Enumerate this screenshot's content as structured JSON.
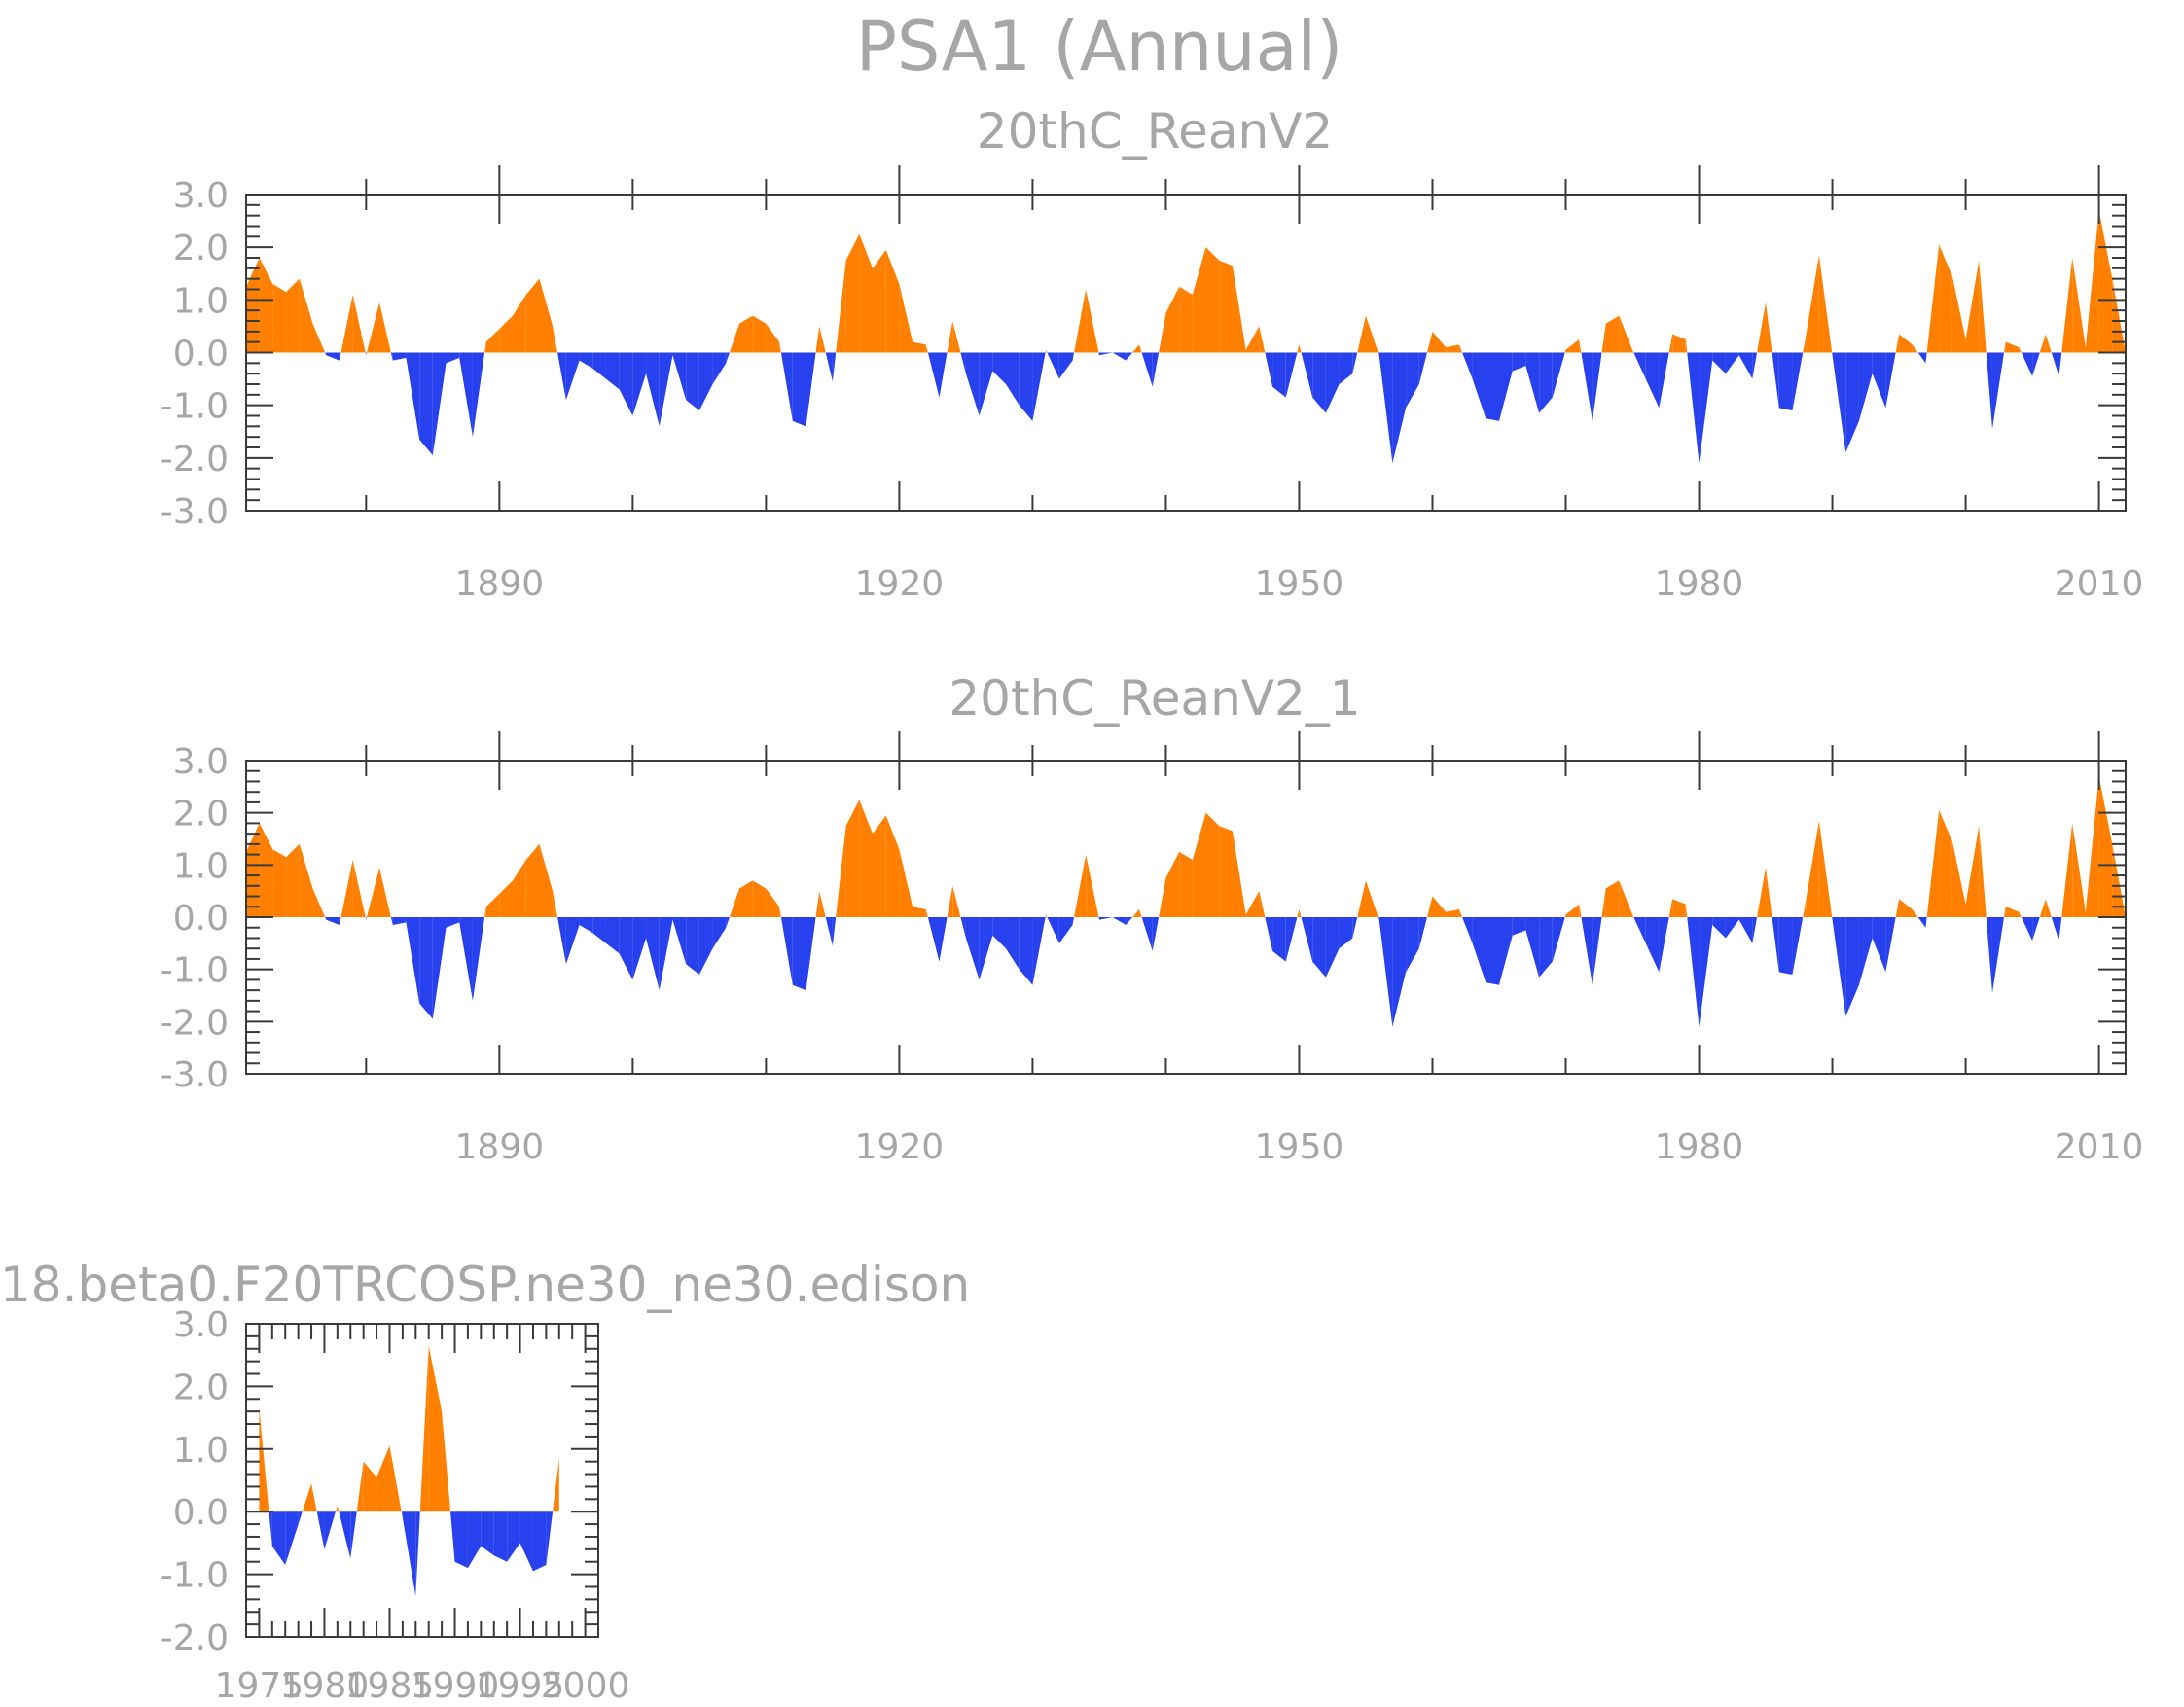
{
  "page": {
    "title": "PSA1 (Annual)"
  },
  "colors": {
    "positive": "#ff8000",
    "negative": "#2841ee",
    "text": "#a6a6a6",
    "frame": "#3a3a3a"
  },
  "chart_data": [
    {
      "type": "area",
      "title": "20thC_ReanV2",
      "xlim": [
        1871,
        2012
      ],
      "ylim": [
        -3,
        3
      ],
      "x_ticks": [
        1890,
        1920,
        1950,
        1980,
        2010
      ],
      "x_tick_labels": [
        "1890",
        "1920",
        "1950",
        "1980",
        "2010"
      ],
      "y_ticks": [
        -3,
        -2,
        -1,
        0,
        1,
        2,
        3
      ],
      "y_tick_labels": [
        "-3.0",
        "-2.0",
        "-1.0",
        "0.0",
        "1.0",
        "2.0",
        "3.0"
      ],
      "grid": false,
      "x": [
        1871,
        1872,
        1873,
        1874,
        1875,
        1876,
        1877,
        1878,
        1879,
        1880,
        1881,
        1882,
        1883,
        1884,
        1885,
        1886,
        1887,
        1888,
        1889,
        1890,
        1891,
        1892,
        1893,
        1894,
        1895,
        1896,
        1897,
        1898,
        1899,
        1900,
        1901,
        1902,
        1903,
        1904,
        1905,
        1906,
        1907,
        1908,
        1909,
        1910,
        1911,
        1912,
        1913,
        1914,
        1915,
        1916,
        1917,
        1918,
        1919,
        1920,
        1921,
        1922,
        1923,
        1924,
        1925,
        1926,
        1927,
        1928,
        1929,
        1930,
        1931,
        1932,
        1933,
        1934,
        1935,
        1936,
        1937,
        1938,
        1939,
        1940,
        1941,
        1942,
        1943,
        1944,
        1945,
        1946,
        1947,
        1948,
        1949,
        1950,
        1951,
        1952,
        1953,
        1954,
        1955,
        1956,
        1957,
        1958,
        1959,
        1960,
        1961,
        1962,
        1963,
        1964,
        1965,
        1966,
        1967,
        1968,
        1969,
        1970,
        1971,
        1972,
        1973,
        1974,
        1975,
        1976,
        1977,
        1978,
        1979,
        1980,
        1981,
        1982,
        1983,
        1984,
        1985,
        1986,
        1987,
        1988,
        1989,
        1990,
        1991,
        1992,
        1993,
        1994,
        1995,
        1996,
        1997,
        1998,
        1999,
        2000,
        2001,
        2002,
        2003,
        2004,
        2005,
        2006,
        2007,
        2008,
        2009,
        2010,
        2011,
        2012
      ],
      "values": [
        1.25,
        1.8,
        1.3,
        1.15,
        1.4,
        0.55,
        -0.05,
        -0.15,
        1.1,
        -0.05,
        0.95,
        -0.15,
        -0.1,
        -1.65,
        -1.95,
        -0.2,
        -0.1,
        -1.6,
        0.2,
        0.45,
        0.7,
        1.1,
        1.4,
        0.5,
        -0.9,
        -0.15,
        -0.3,
        -0.5,
        -0.7,
        -1.2,
        -0.4,
        -1.4,
        -0.05,
        -0.9,
        -1.1,
        -0.6,
        -0.2,
        0.55,
        0.7,
        0.55,
        0.2,
        -1.3,
        -1.4,
        0.5,
        -0.55,
        1.75,
        2.25,
        1.6,
        1.95,
        1.3,
        0.2,
        0.15,
        -0.85,
        0.6,
        -0.4,
        -1.2,
        -0.35,
        -0.6,
        -1.0,
        -1.3,
        0.05,
        -0.5,
        -0.15,
        1.2,
        -0.05,
        0.0,
        -0.15,
        0.15,
        -0.65,
        0.75,
        1.25,
        1.1,
        2.0,
        1.75,
        1.65,
        0.05,
        0.5,
        -0.65,
        -0.85,
        0.15,
        -0.85,
        -1.15,
        -0.6,
        -0.4,
        0.7,
        -0.05,
        -2.1,
        -1.05,
        -0.6,
        0.4,
        0.1,
        0.15,
        -0.5,
        -1.25,
        -1.3,
        -0.35,
        -0.25,
        -1.15,
        -0.85,
        0.05,
        0.25,
        -1.3,
        0.55,
        0.7,
        0.05,
        -0.5,
        -1.05,
        0.35,
        0.25,
        -2.1,
        -0.15,
        -0.4,
        -0.05,
        -0.5,
        0.95,
        -1.05,
        -1.1,
        0.3,
        1.85,
        -0.05,
        -1.9,
        -1.3,
        -0.4,
        -1.05,
        0.35,
        0.15,
        -0.2,
        2.05,
        1.45,
        0.25,
        1.75,
        -1.45,
        0.2,
        0.1,
        -0.45,
        0.35,
        -0.45,
        1.8,
        0.1,
        2.7,
        1.4,
        0.0
      ]
    },
    {
      "type": "area",
      "title": "20thC_ReanV2_1",
      "xlim": [
        1871,
        2012
      ],
      "ylim": [
        -3,
        3
      ],
      "x_ticks": [
        1890,
        1920,
        1950,
        1980,
        2010
      ],
      "x_tick_labels": [
        "1890",
        "1920",
        "1950",
        "1980",
        "2010"
      ],
      "y_ticks": [
        -3,
        -2,
        -1,
        0,
        1,
        2,
        3
      ],
      "y_tick_labels": [
        "-3.0",
        "-2.0",
        "-1.0",
        "0.0",
        "1.0",
        "2.0",
        "3.0"
      ],
      "grid": false,
      "x": [
        1871,
        1872,
        1873,
        1874,
        1875,
        1876,
        1877,
        1878,
        1879,
        1880,
        1881,
        1882,
        1883,
        1884,
        1885,
        1886,
        1887,
        1888,
        1889,
        1890,
        1891,
        1892,
        1893,
        1894,
        1895,
        1896,
        1897,
        1898,
        1899,
        1900,
        1901,
        1902,
        1903,
        1904,
        1905,
        1906,
        1907,
        1908,
        1909,
        1910,
        1911,
        1912,
        1913,
        1914,
        1915,
        1916,
        1917,
        1918,
        1919,
        1920,
        1921,
        1922,
        1923,
        1924,
        1925,
        1926,
        1927,
        1928,
        1929,
        1930,
        1931,
        1932,
        1933,
        1934,
        1935,
        1936,
        1937,
        1938,
        1939,
        1940,
        1941,
        1942,
        1943,
        1944,
        1945,
        1946,
        1947,
        1948,
        1949,
        1950,
        1951,
        1952,
        1953,
        1954,
        1955,
        1956,
        1957,
        1958,
        1959,
        1960,
        1961,
        1962,
        1963,
        1964,
        1965,
        1966,
        1967,
        1968,
        1969,
        1970,
        1971,
        1972,
        1973,
        1974,
        1975,
        1976,
        1977,
        1978,
        1979,
        1980,
        1981,
        1982,
        1983,
        1984,
        1985,
        1986,
        1987,
        1988,
        1989,
        1990,
        1991,
        1992,
        1993,
        1994,
        1995,
        1996,
        1997,
        1998,
        1999,
        2000,
        2001,
        2002,
        2003,
        2004,
        2005,
        2006,
        2007,
        2008,
        2009,
        2010,
        2011,
        2012
      ],
      "values": [
        1.25,
        1.8,
        1.3,
        1.15,
        1.4,
        0.55,
        -0.05,
        -0.15,
        1.1,
        -0.05,
        0.95,
        -0.15,
        -0.1,
        -1.65,
        -1.95,
        -0.2,
        -0.1,
        -1.6,
        0.2,
        0.45,
        0.7,
        1.1,
        1.4,
        0.5,
        -0.9,
        -0.15,
        -0.3,
        -0.5,
        -0.7,
        -1.2,
        -0.4,
        -1.4,
        -0.05,
        -0.9,
        -1.1,
        -0.6,
        -0.2,
        0.55,
        0.7,
        0.55,
        0.2,
        -1.3,
        -1.4,
        0.5,
        -0.55,
        1.75,
        2.25,
        1.6,
        1.95,
        1.3,
        0.2,
        0.15,
        -0.85,
        0.6,
        -0.4,
        -1.2,
        -0.35,
        -0.6,
        -1.0,
        -1.3,
        0.05,
        -0.5,
        -0.15,
        1.2,
        -0.05,
        0.0,
        -0.15,
        0.15,
        -0.65,
        0.75,
        1.25,
        1.1,
        2.0,
        1.75,
        1.65,
        0.05,
        0.5,
        -0.65,
        -0.85,
        0.15,
        -0.85,
        -1.15,
        -0.6,
        -0.4,
        0.7,
        -0.05,
        -2.1,
        -1.05,
        -0.6,
        0.4,
        0.1,
        0.15,
        -0.5,
        -1.25,
        -1.3,
        -0.35,
        -0.25,
        -1.15,
        -0.85,
        0.05,
        0.25,
        -1.3,
        0.55,
        0.7,
        0.05,
        -0.5,
        -1.05,
        0.35,
        0.25,
        -2.1,
        -0.15,
        -0.4,
        -0.05,
        -0.5,
        0.95,
        -1.05,
        -1.1,
        0.3,
        1.85,
        -0.05,
        -1.9,
        -1.3,
        -0.4,
        -1.05,
        0.35,
        0.15,
        -0.2,
        2.05,
        1.45,
        0.25,
        1.75,
        -1.45,
        0.2,
        0.1,
        -0.45,
        0.35,
        -0.45,
        1.8,
        0.1,
        2.7,
        1.4,
        0.0
      ]
    },
    {
      "type": "area",
      "title": "18.beta0.F20TRCOSP.ne30_ne30.edison",
      "xlim": [
        1974,
        2001
      ],
      "ylim": [
        -2,
        3
      ],
      "x_ticks": [
        1975,
        1980,
        1985,
        1990,
        1995,
        2000
      ],
      "x_tick_labels": [
        "1975",
        "1980",
        "1985",
        "1990",
        "1995",
        "2000"
      ],
      "y_ticks": [
        -2,
        -1,
        0,
        1,
        2,
        3
      ],
      "y_tick_labels": [
        "-2.0",
        "-1.0",
        "0.0",
        "1.0",
        "2.0",
        "3.0"
      ],
      "grid": false,
      "x": [
        1975,
        1976,
        1977,
        1978,
        1979,
        1980,
        1981,
        1982,
        1983,
        1984,
        1985,
        1986,
        1987,
        1988,
        1989,
        1990,
        1991,
        1992,
        1993,
        1994,
        1995,
        1996,
        1997,
        1998
      ],
      "values": [
        1.65,
        -0.55,
        -0.85,
        -0.2,
        0.45,
        -0.6,
        0.1,
        -0.75,
        0.8,
        0.55,
        1.05,
        -0.1,
        -1.35,
        2.65,
        1.6,
        -0.8,
        -0.9,
        -0.55,
        -0.7,
        -0.8,
        -0.5,
        -0.95,
        -0.85,
        0.85
      ]
    }
  ]
}
